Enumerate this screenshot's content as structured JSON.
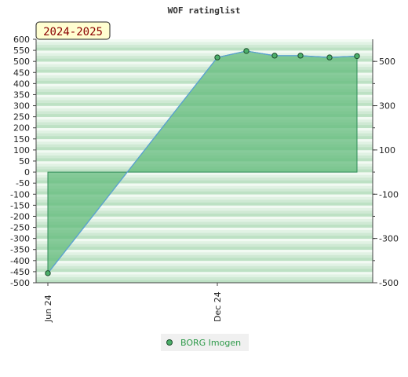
{
  "title": "WOF ratinglist",
  "season_label": "2024-2025",
  "legend": {
    "label": "BORG Imogen"
  },
  "colors": {
    "line": "#5aa0d8",
    "area": "#63bb7c",
    "area_stroke": "#2e8b57",
    "marker": "#4caf6a",
    "stripe_a": "#e8f5ea",
    "stripe_b": "#bfe3c6"
  },
  "chart_data": {
    "type": "area",
    "title": "WOF ratinglist",
    "xlabel": "",
    "ylabel": "",
    "ylim": [
      -500,
      600
    ],
    "right_ylim": [
      -500,
      600
    ],
    "y_ticks_left": [
      600,
      550,
      500,
      450,
      400,
      350,
      300,
      250,
      200,
      150,
      100,
      50,
      0,
      -50,
      -100,
      -150,
      -200,
      -250,
      -300,
      -350,
      -400,
      -450,
      -500
    ],
    "y_ticks_right": [
      500,
      300,
      100,
      -100,
      -300,
      -500
    ],
    "x_tick_labels": [
      "Jun 24",
      "Dec 24"
    ],
    "series": [
      {
        "name": "BORG Imogen",
        "points": [
          {
            "x": "Jun 24",
            "y": -457
          },
          {
            "x": "Dec 24",
            "y": 518
          },
          {
            "x": "",
            "y": 547
          },
          {
            "x": "",
            "y": 526
          },
          {
            "x": "",
            "y": 526
          },
          {
            "x": "",
            "y": 518
          },
          {
            "x": "",
            "y": 524
          }
        ]
      }
    ]
  }
}
